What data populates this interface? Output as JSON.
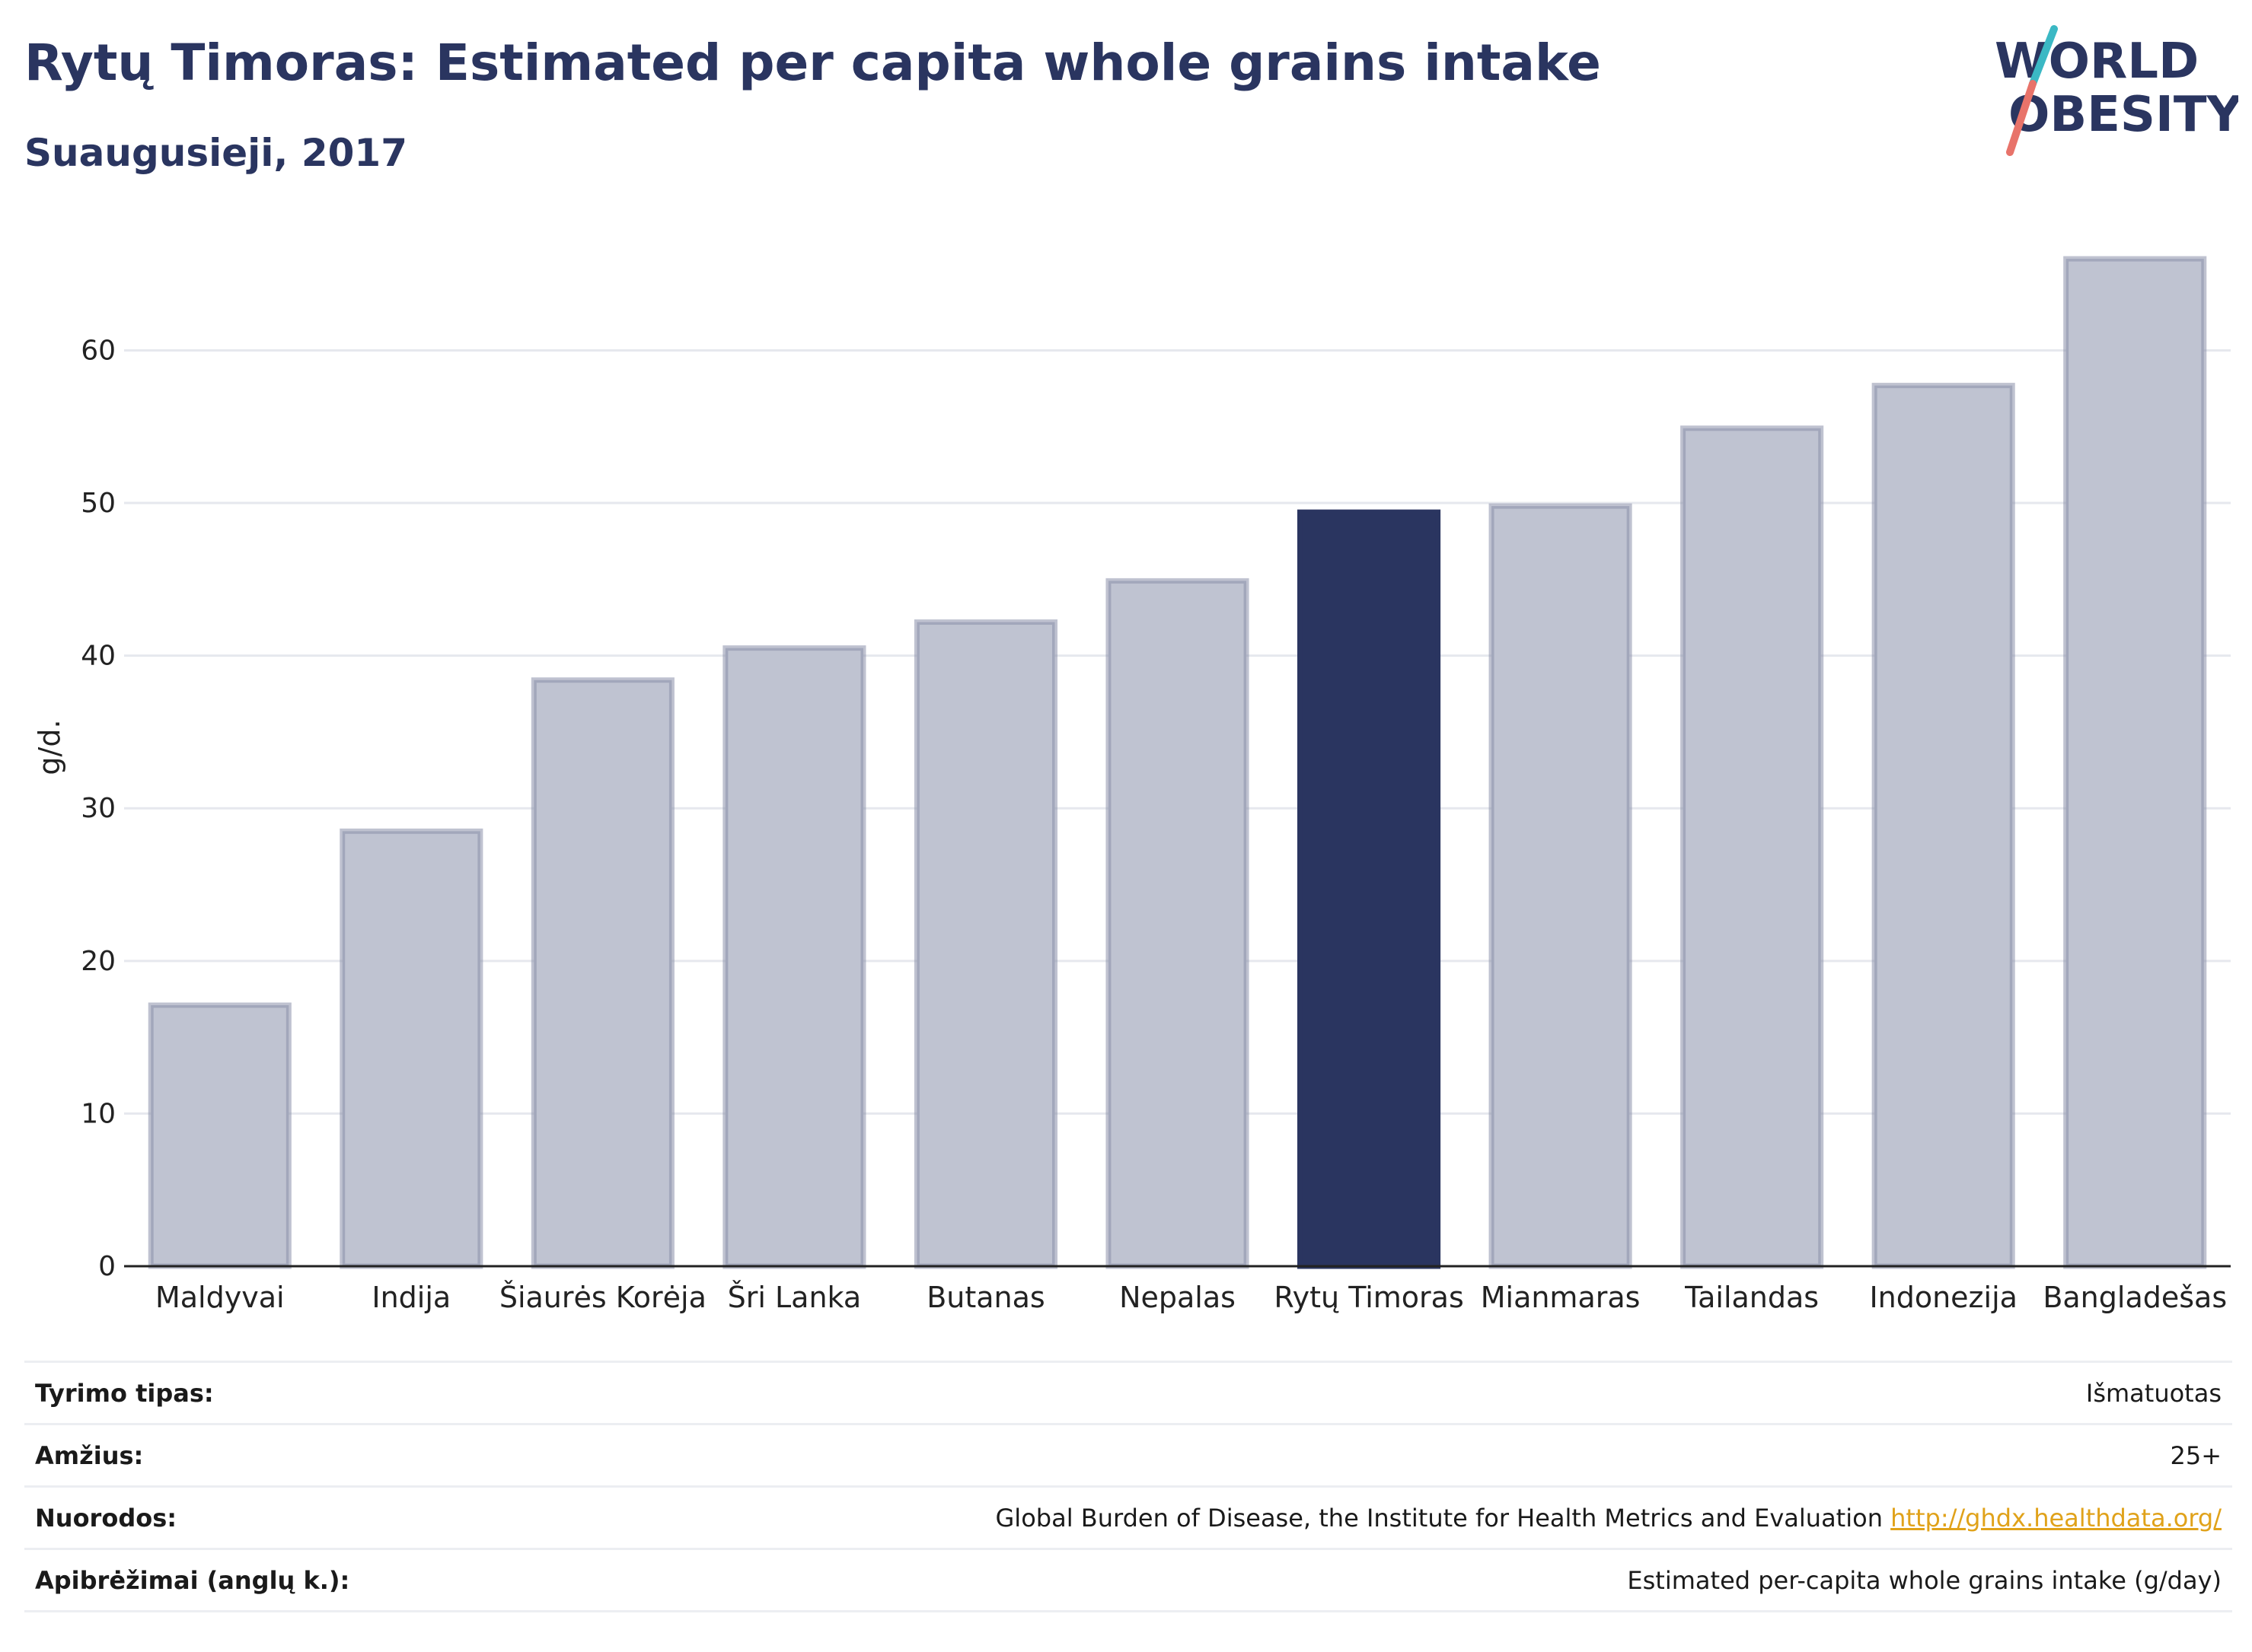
{
  "header": {
    "title": "Rytų Timoras: Estimated per capita whole grains intake",
    "subtitle": "Suaugusieji, 2017"
  },
  "logo": {
    "line1": "WORLD",
    "line2": "OBESITY",
    "colors": {
      "text": "#2a3560",
      "slash_top": "#3bb8c4",
      "slash_bottom": "#e8736a"
    }
  },
  "chart_data": {
    "type": "bar",
    "categories": [
      "Maldyvai",
      "Indija",
      "Šiaurės Korėja",
      "Šri Lanka",
      "Butanas",
      "Nepalas",
      "Rytų Timoras",
      "Mianmaras",
      "Tailandas",
      "Indonezija",
      "Bangladešas"
    ],
    "values": [
      17.1,
      28.5,
      38.4,
      40.5,
      42.2,
      44.9,
      49.4,
      49.8,
      54.9,
      57.7,
      66.0
    ],
    "highlight": "Rytų Timoras",
    "ylabel": "g/d.",
    "ylim": [
      0,
      68
    ],
    "yticks": [
      0,
      10,
      20,
      30,
      40,
      50,
      60
    ],
    "grid": true,
    "colors": {
      "bar": "#bfc3d1",
      "bar_border": "#8a90aa",
      "highlight": "#2a3560",
      "grid": "#e6e8ee",
      "axis": "#222222"
    }
  },
  "meta": {
    "rows": [
      {
        "label": "Tyrimo tipas:",
        "value": "Išmatuotas"
      },
      {
        "label": "Amžius:",
        "value": "25+"
      },
      {
        "label": "Nuorodos:",
        "value": "Global Burden of Disease, the Institute for Health Metrics and Evaluation",
        "link": "http://ghdx.healthdata.org/"
      },
      {
        "label": "Apibrėžimai (anglų k.):",
        "value": "Estimated per-capita whole grains intake (g/day)"
      }
    ]
  }
}
